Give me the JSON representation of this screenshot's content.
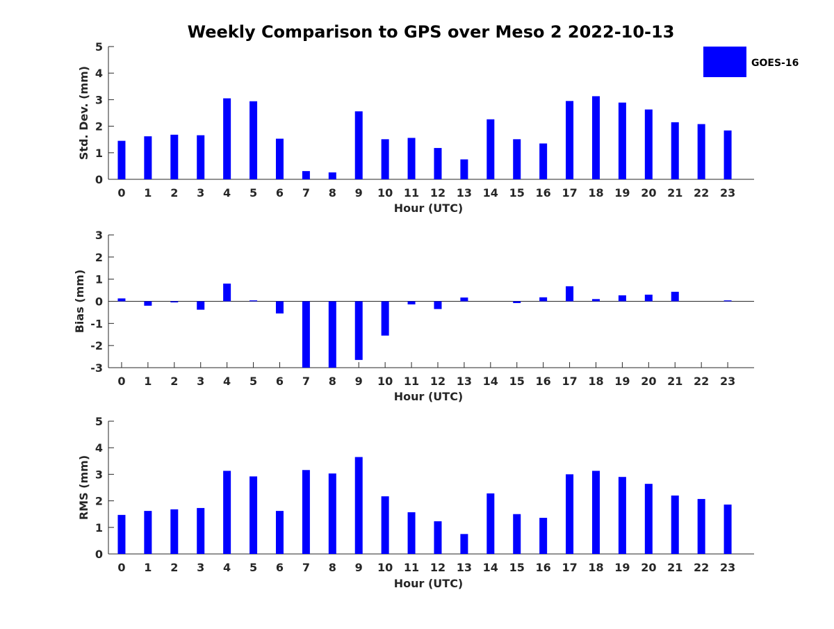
{
  "chart_data": {
    "title": "Weekly Comparison to GPS over Meso 2 2022-10-13",
    "legend": {
      "label": "GOES-16",
      "color": "#0000ff",
      "placement": "top-right"
    },
    "bar_color": "#0000ff",
    "panels": [
      {
        "type": "bar",
        "xlabel": "Hour (UTC)",
        "ylabel": "Std. Dev. (mm)",
        "ylim": [
          0,
          5
        ],
        "yticks": [
          0,
          1,
          2,
          3,
          4,
          5
        ],
        "categories": [
          "0",
          "1",
          "2",
          "3",
          "4",
          "5",
          "6",
          "7",
          "8",
          "9",
          "10",
          "11",
          "12",
          "13",
          "14",
          "15",
          "16",
          "17",
          "18",
          "19",
          "20",
          "21",
          "22",
          "23"
        ],
        "series": [
          {
            "name": "GOES-16",
            "values": [
              1.45,
              1.62,
              1.68,
              1.66,
              3.05,
              2.94,
              1.53,
              0.31,
              0.26,
              2.56,
              1.51,
              1.56,
              1.18,
              0.75,
              2.26,
              1.51,
              1.35,
              2.95,
              3.13,
              2.89,
              2.63,
              2.15,
              2.08,
              1.84
            ]
          }
        ]
      },
      {
        "type": "bar",
        "xlabel": "Hour (UTC)",
        "ylabel": "Bias (mm)",
        "ylim": [
          -3,
          3
        ],
        "yticks": [
          -3,
          -2,
          -1,
          0,
          1,
          2,
          3
        ],
        "categories": [
          "0",
          "1",
          "2",
          "3",
          "4",
          "5",
          "6",
          "7",
          "8",
          "9",
          "10",
          "11",
          "12",
          "13",
          "14",
          "15",
          "16",
          "17",
          "18",
          "19",
          "20",
          "21",
          "22",
          "23"
        ],
        "series": [
          {
            "name": "GOES-16",
            "values": [
              0.13,
              -0.2,
              -0.05,
              -0.38,
              0.8,
              0.04,
              -0.55,
              -3.0,
              -3.0,
              -2.65,
              -1.55,
              -0.14,
              -0.35,
              0.17,
              0.0,
              -0.08,
              0.18,
              0.68,
              0.1,
              0.27,
              0.3,
              0.43,
              0.0,
              0.04
            ]
          }
        ]
      },
      {
        "type": "bar",
        "xlabel": "Hour (UTC)",
        "ylabel": "RMS (mm)",
        "ylim": [
          0,
          5
        ],
        "yticks": [
          0,
          1,
          2,
          3,
          4,
          5
        ],
        "categories": [
          "0",
          "1",
          "2",
          "3",
          "4",
          "5",
          "6",
          "7",
          "8",
          "9",
          "10",
          "11",
          "12",
          "13",
          "14",
          "15",
          "16",
          "17",
          "18",
          "19",
          "20",
          "21",
          "22",
          "23"
        ],
        "series": [
          {
            "name": "GOES-16",
            "values": [
              1.47,
              1.62,
              1.68,
              1.73,
              3.13,
              2.92,
              1.62,
              3.16,
              3.03,
              3.65,
              2.17,
              1.57,
              1.23,
              0.75,
              2.28,
              1.5,
              1.36,
              3.0,
              3.13,
              2.9,
              2.64,
              2.2,
              2.07,
              1.86
            ]
          }
        ]
      }
    ]
  }
}
